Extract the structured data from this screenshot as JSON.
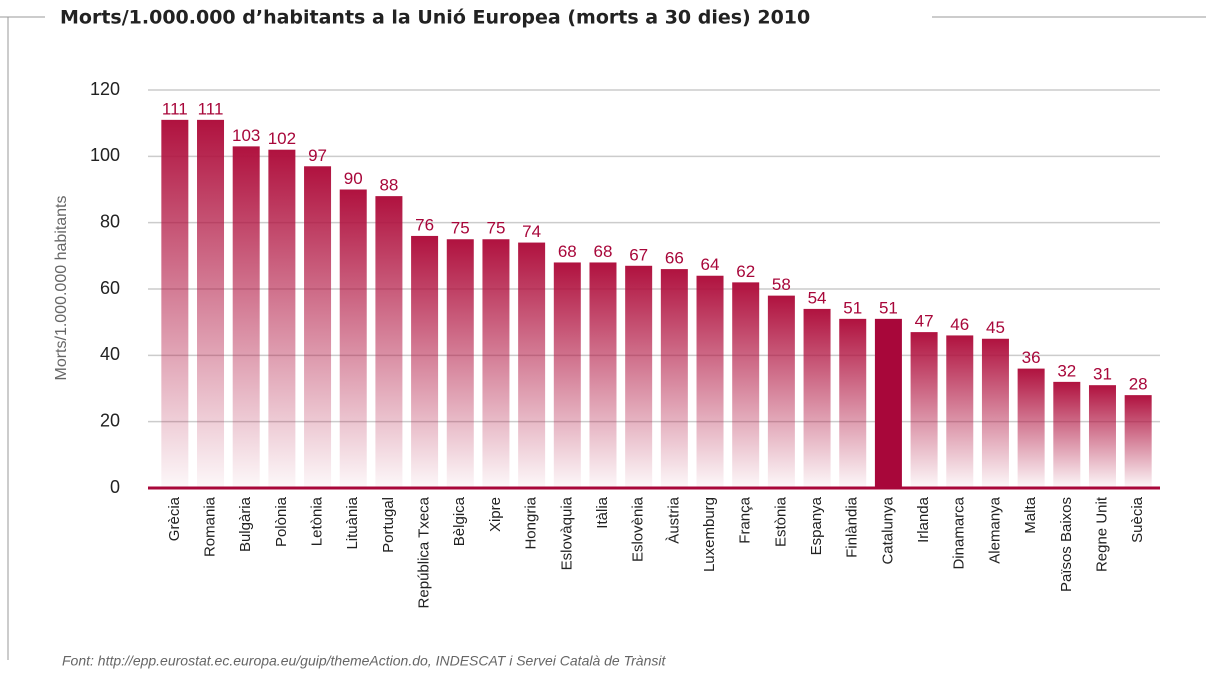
{
  "chart_data": {
    "type": "bar",
    "title": "Morts/1.000.000 d’habitants a la Unió Europea (morts a 30 dies) 2010",
    "y_label": "Morts/1.000.000 habitants",
    "source": "Font: http://epp.eurostat.ec.europa.eu/guip/themeAction.do, INDESCAT i Servei Català de Trànsit",
    "categories": [
      "Grècia",
      "Romania",
      "Bulgària",
      "Polònia",
      "Letònia",
      "Lituània",
      "Portugal",
      "República Txeca",
      "Bèlgica",
      "Xipre",
      "Hongria",
      "Eslovàquia",
      "Itàlia",
      "Eslovènia",
      "Àustria",
      "Luxemburg",
      "França",
      "Estònia",
      "Espanya",
      "Finlàndia",
      "Catalunya",
      "Irlanda",
      "Dinamarca",
      "Alemanya",
      "Malta",
      "Països Baixos",
      "Regne Unit",
      "Suècia"
    ],
    "values": [
      111,
      111,
      103,
      102,
      97,
      90,
      88,
      76,
      75,
      75,
      74,
      68,
      68,
      67,
      66,
      64,
      62,
      58,
      54,
      51,
      51,
      47,
      46,
      45,
      36,
      32,
      31,
      28
    ],
    "color": "#b0123f",
    "highlight": {
      "category": "Catalunya",
      "color": "#a8073a"
    },
    "ylim": [
      0,
      120
    ],
    "yticks": [
      0,
      20,
      40,
      60,
      80,
      100,
      120
    ],
    "grid": true
  }
}
